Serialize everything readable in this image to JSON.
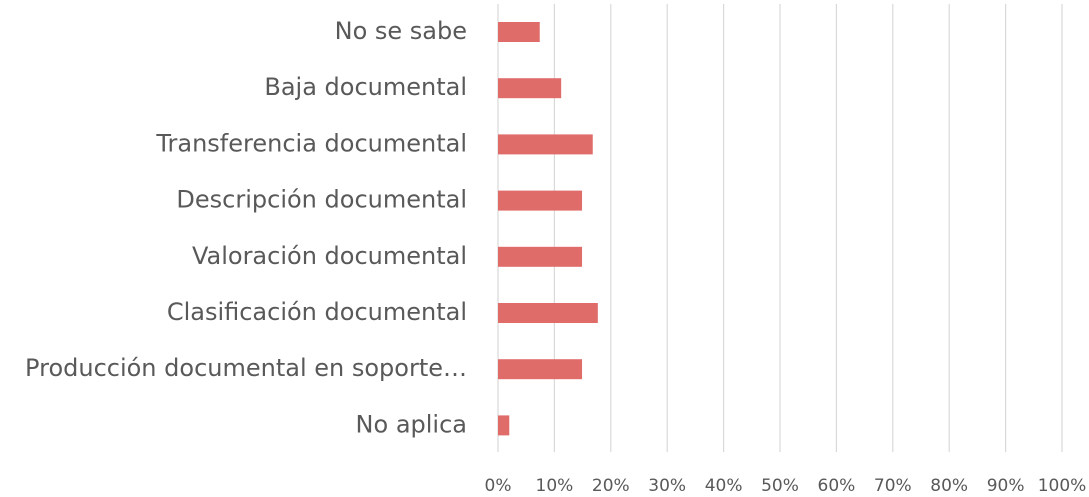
{
  "chart_data": {
    "type": "barh",
    "categories": [
      "No se sabe",
      "Baja documental",
      "Transferencia documental",
      "Descripción documental",
      "Valoración documental",
      "Clasificación documental",
      "Producción documental en soporte…",
      "No aplica"
    ],
    "values": [
      7.4,
      11.2,
      16.8,
      14.9,
      14.9,
      17.7,
      14.9,
      2
    ],
    "color": "#e06c6a",
    "xlim": [
      0,
      100
    ],
    "xticks": [
      {
        "value": 0,
        "label": "0%"
      },
      {
        "value": 10,
        "label": "10%"
      },
      {
        "value": 20,
        "label": "20%"
      },
      {
        "value": 30,
        "label": "30%"
      },
      {
        "value": 40,
        "label": "40%"
      },
      {
        "value": 50,
        "label": "50%"
      },
      {
        "value": 60,
        "label": "60%"
      },
      {
        "value": 70,
        "label": "70%"
      },
      {
        "value": 80,
        "label": "80%"
      },
      {
        "value": 90,
        "label": "90%"
      },
      {
        "value": 100,
        "label": "100%"
      }
    ],
    "grid": true
  }
}
